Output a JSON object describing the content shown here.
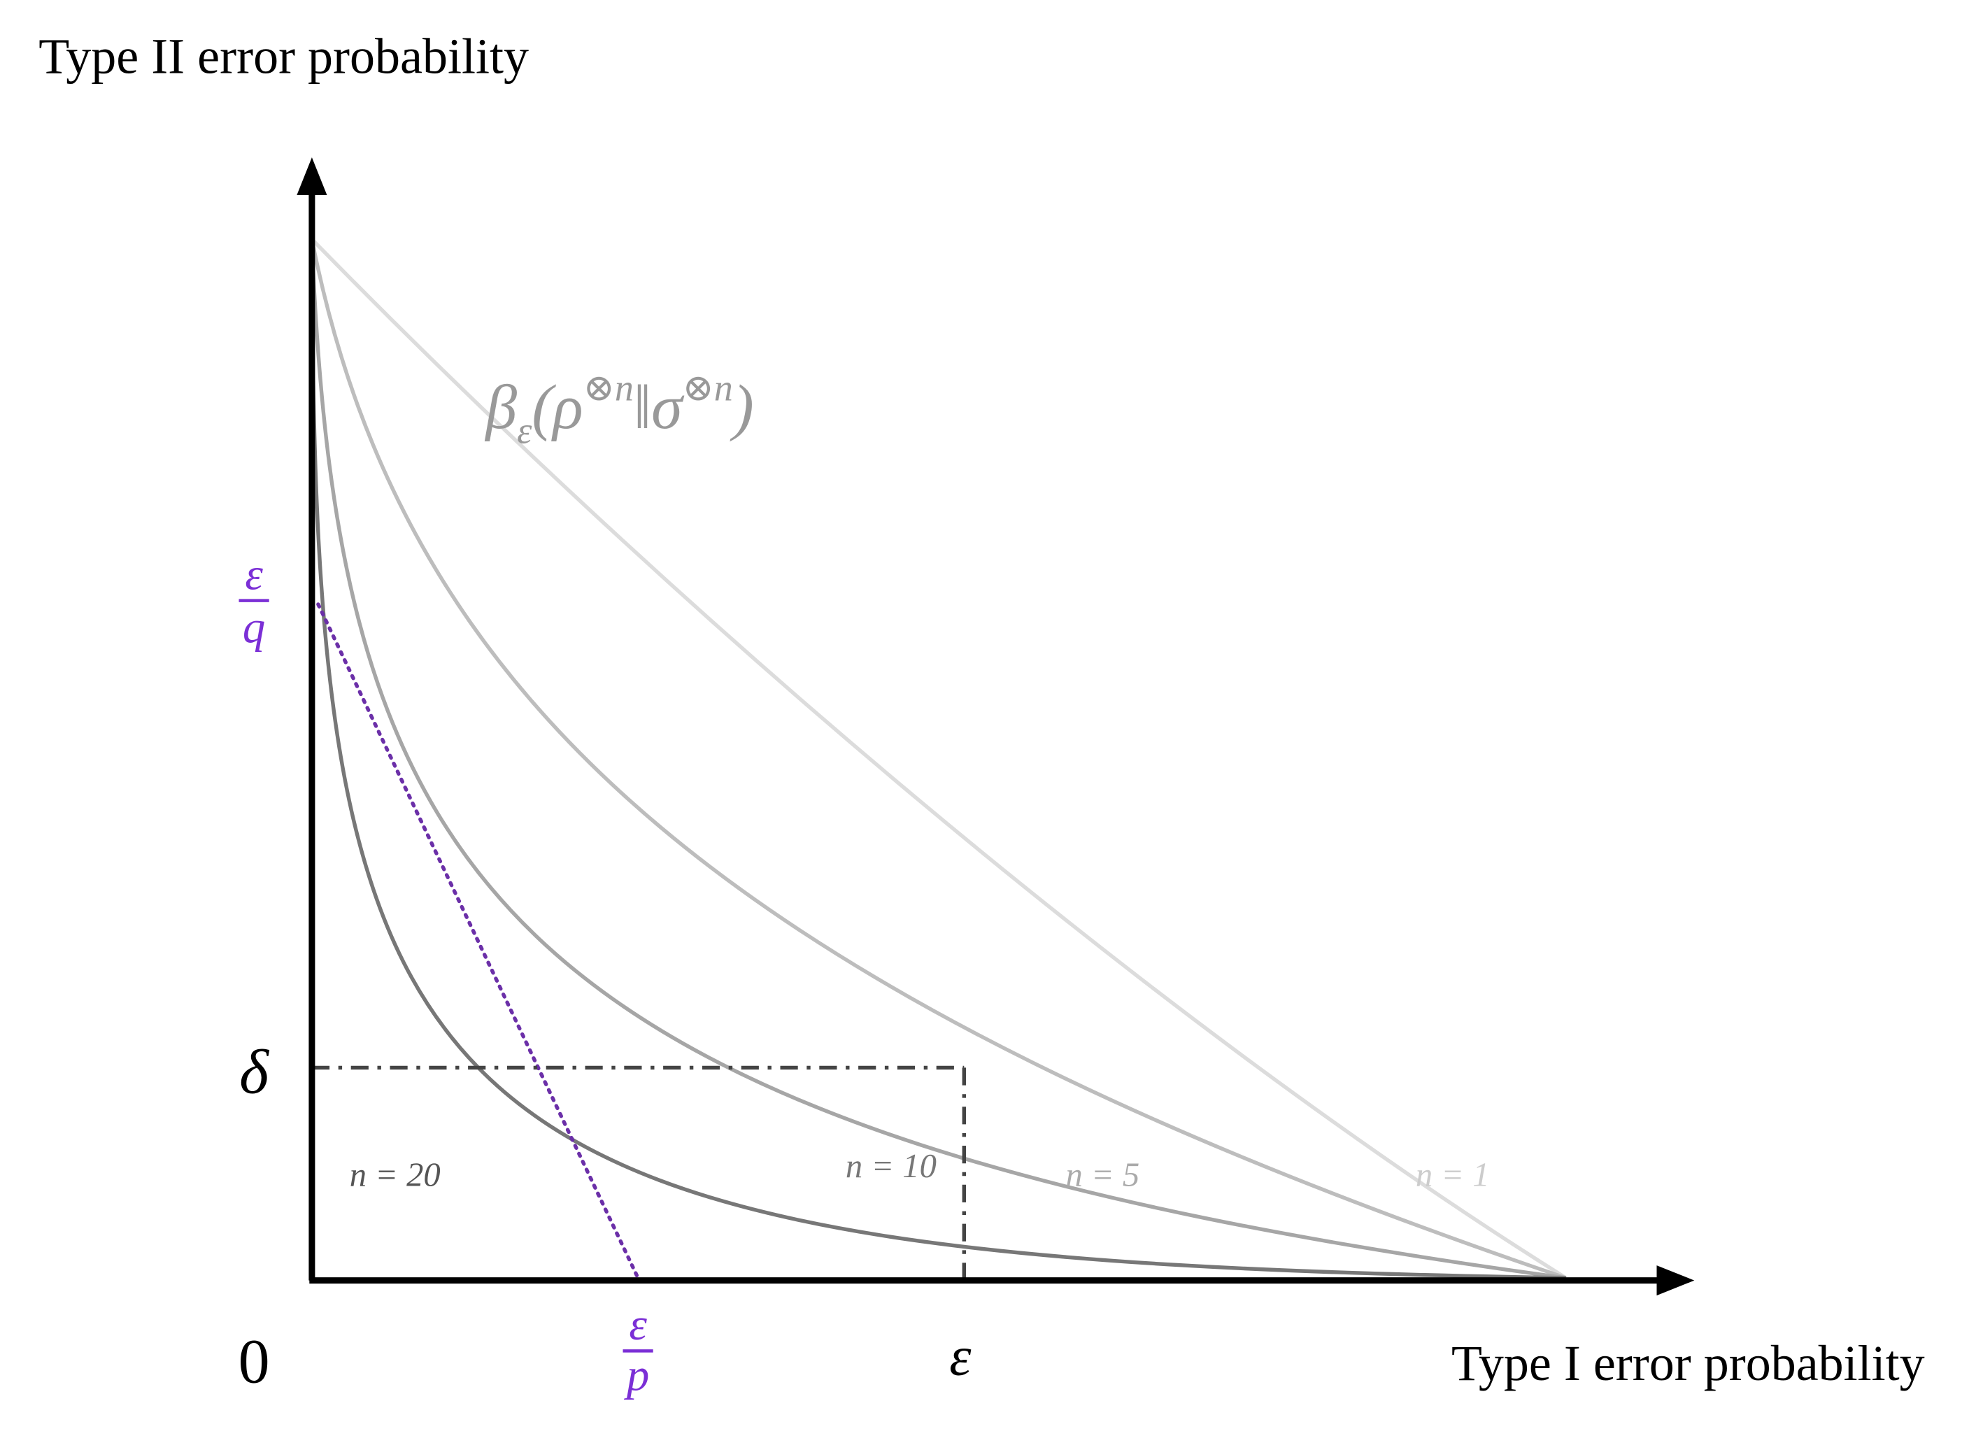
{
  "y_axis_label": "Type II error probability",
  "x_axis_label": "Type I error probability",
  "origin_label": "0",
  "y_markers": {
    "delta": "δ",
    "eps_over_q": {
      "numerator": "ε",
      "denominator": "q"
    }
  },
  "x_markers": {
    "eps_over_p": {
      "numerator": "ε",
      "denominator": "p"
    },
    "eps": "ε"
  },
  "curve_formula": {
    "parts": [
      "β",
      "ε",
      "(ρ",
      "⊗n",
      "‖σ",
      "⊗n",
      ")"
    ]
  },
  "curve_labels": [
    "n = 20",
    "n = 10",
    "n = 5",
    "n = 1"
  ]
}
